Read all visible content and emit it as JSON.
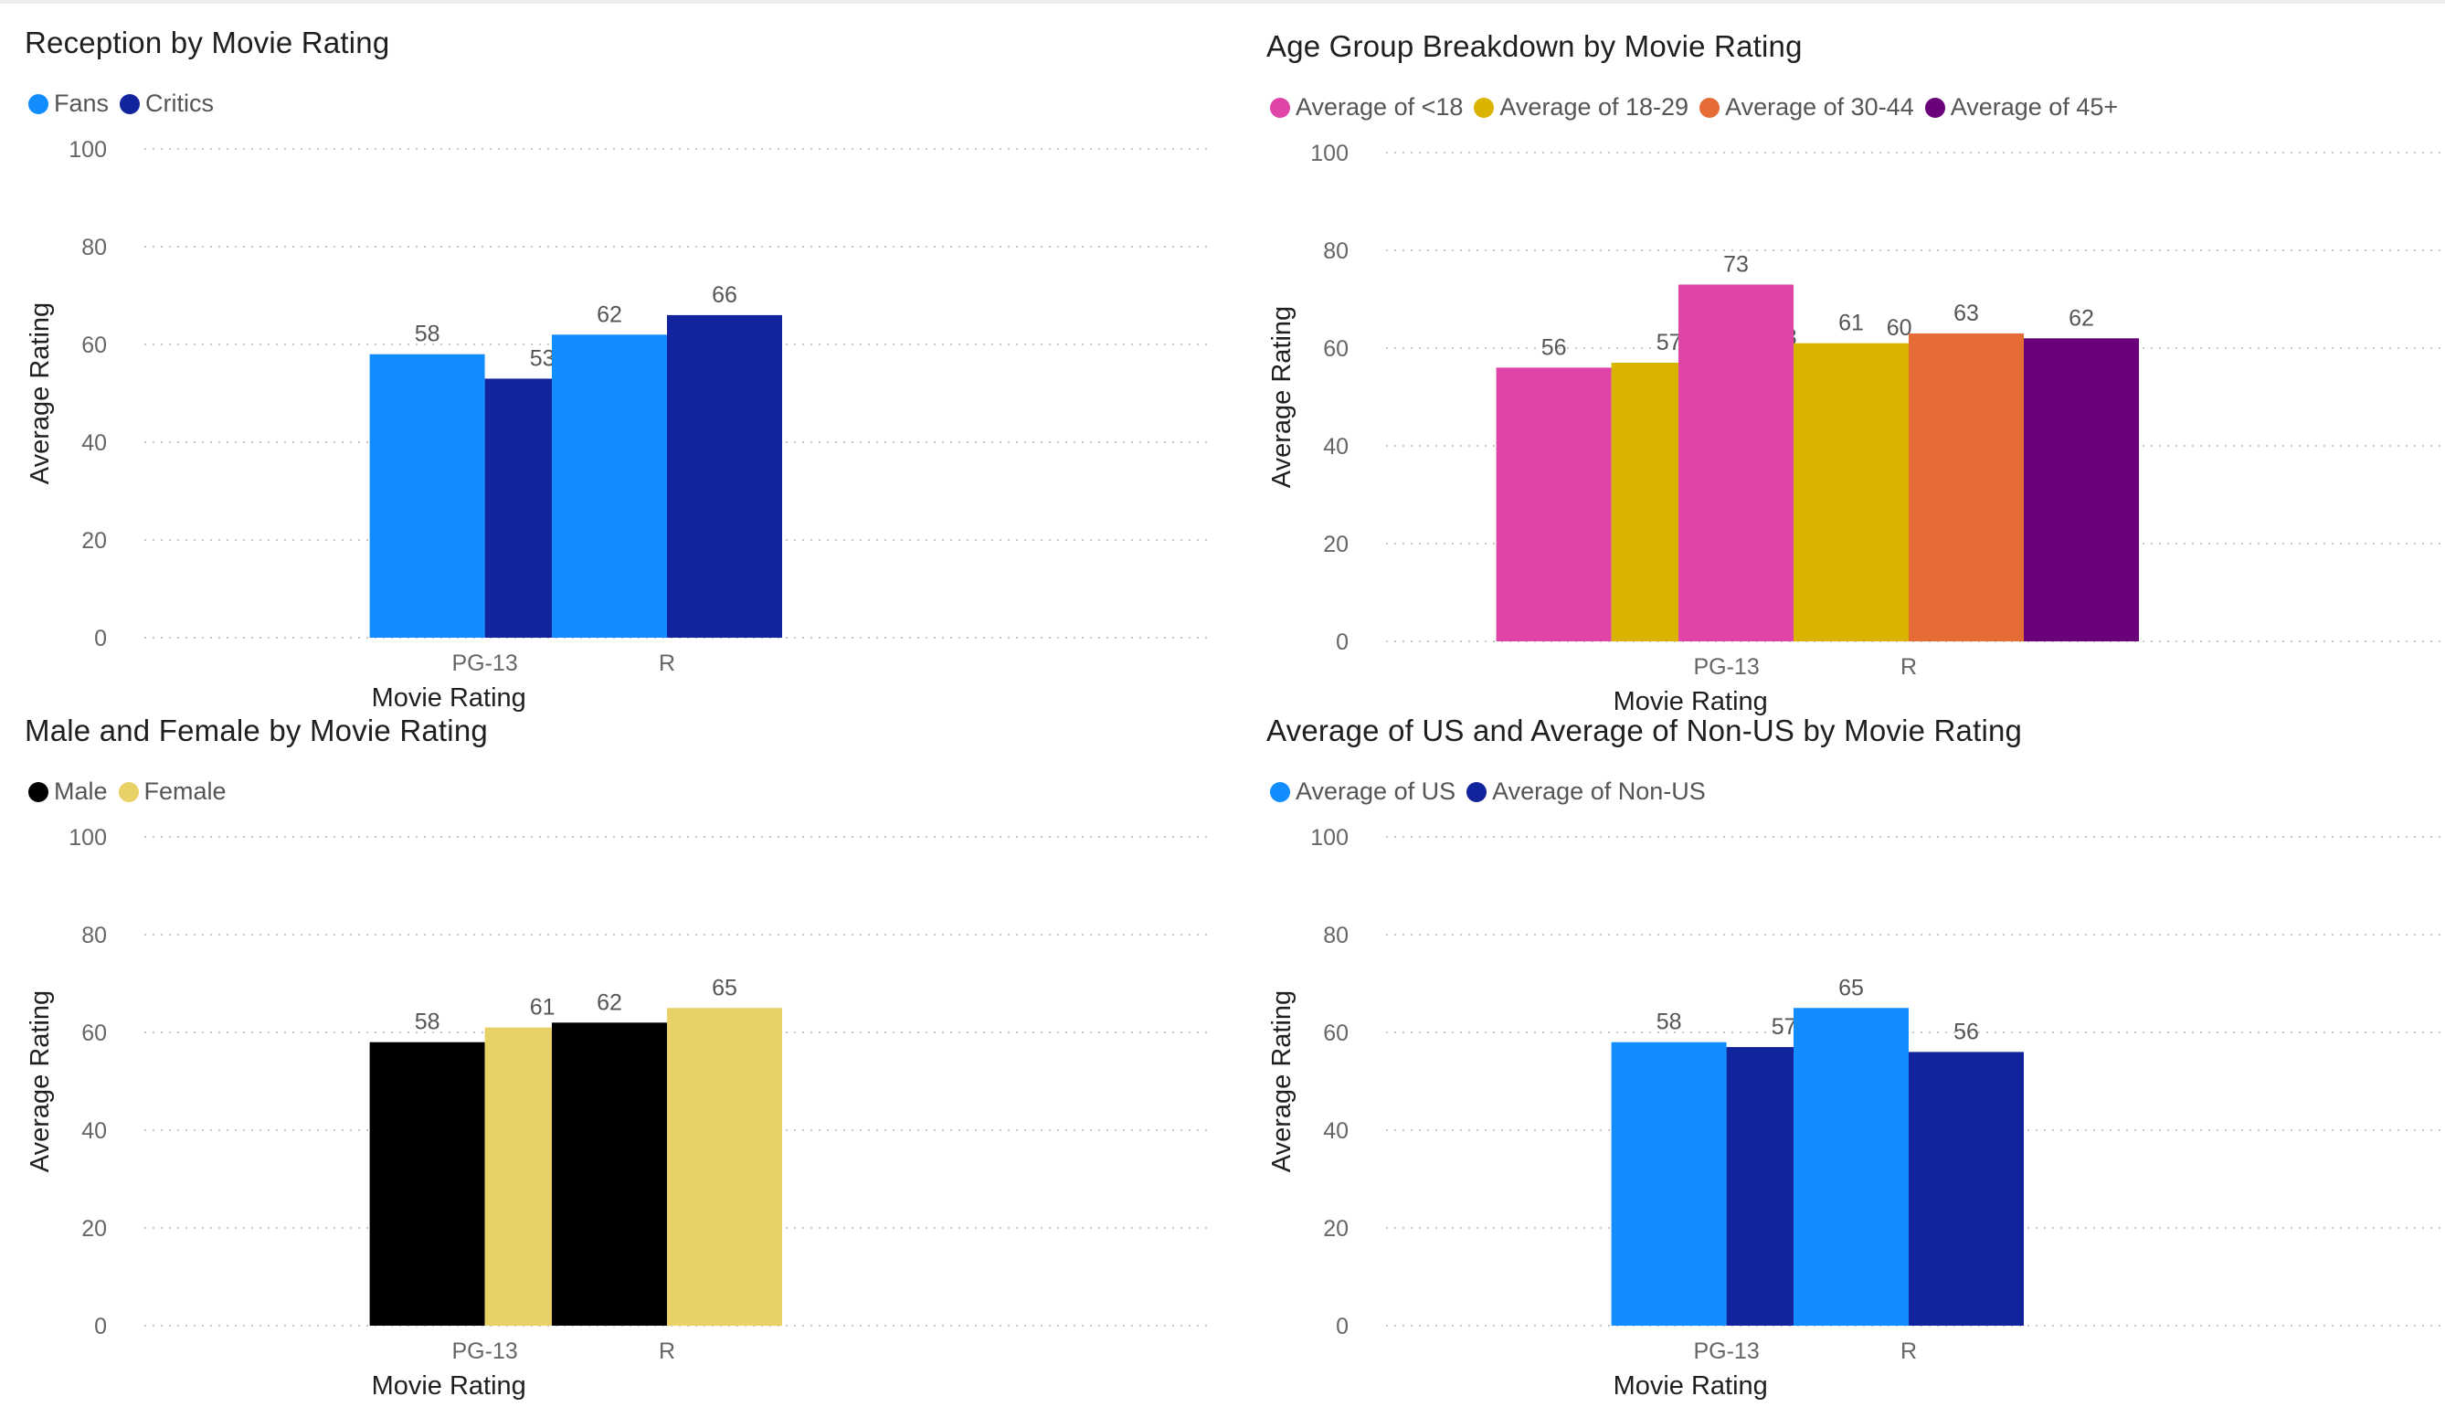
{
  "chart_data": [
    {
      "type": "bar",
      "title": "Reception by Movie Rating",
      "xlabel": "Movie Rating",
      "ylabel": "Average Rating",
      "ylim": [
        0,
        100
      ],
      "yticks": [
        0,
        20,
        40,
        60,
        80,
        100
      ],
      "grid": true,
      "legend_position": "top-left",
      "categories": [
        "PG-13",
        "R"
      ],
      "series": [
        {
          "name": "Fans",
          "color": "#118DFF",
          "values": [
            58,
            62
          ]
        },
        {
          "name": "Critics",
          "color": "#12239E",
          "values": [
            53,
            66
          ]
        }
      ]
    },
    {
      "type": "bar",
      "title": "Age Group Breakdown by Movie Rating",
      "xlabel": "Movie Rating",
      "ylabel": "Average Rating",
      "ylim": [
        0,
        100
      ],
      "yticks": [
        0,
        20,
        40,
        60,
        80,
        100
      ],
      "grid": true,
      "legend_position": "top-left",
      "categories": [
        "PG-13",
        "R"
      ],
      "series": [
        {
          "name": "Average of <18",
          "color": "#E044A7",
          "values": [
            56,
            73
          ]
        },
        {
          "name": "Average of 18-29",
          "color": "#D9B300",
          "values": [
            57,
            61
          ]
        },
        {
          "name": "Average of 30-44",
          "color": "#E66C37",
          "values": [
            58,
            63
          ]
        },
        {
          "name": "Average of 45+",
          "color": "#6B007B",
          "values": [
            60,
            62
          ]
        }
      ]
    },
    {
      "type": "bar",
      "title": "Male and Female by Movie Rating",
      "xlabel": "Movie Rating",
      "ylabel": "Average Rating",
      "ylim": [
        0,
        100
      ],
      "yticks": [
        0,
        20,
        40,
        60,
        80,
        100
      ],
      "grid": true,
      "legend_position": "top-left",
      "categories": [
        "PG-13",
        "R"
      ],
      "series": [
        {
          "name": "Male",
          "color": "#000000",
          "values": [
            58,
            62
          ]
        },
        {
          "name": "Female",
          "color": "#E8D166",
          "values": [
            61,
            65
          ]
        }
      ]
    },
    {
      "type": "bar",
      "title": "Average of US and Average of Non-US by Movie Rating",
      "xlabel": "Movie Rating",
      "ylabel": "Average Rating",
      "ylim": [
        0,
        100
      ],
      "yticks": [
        0,
        20,
        40,
        60,
        80,
        100
      ],
      "grid": true,
      "legend_position": "top-left",
      "categories": [
        "PG-13",
        "R"
      ],
      "series": [
        {
          "name": "Average of US",
          "color": "#118DFF",
          "values": [
            58,
            65
          ]
        },
        {
          "name": "Average of Non-US",
          "color": "#12239E",
          "values": [
            57,
            56
          ]
        }
      ]
    }
  ]
}
